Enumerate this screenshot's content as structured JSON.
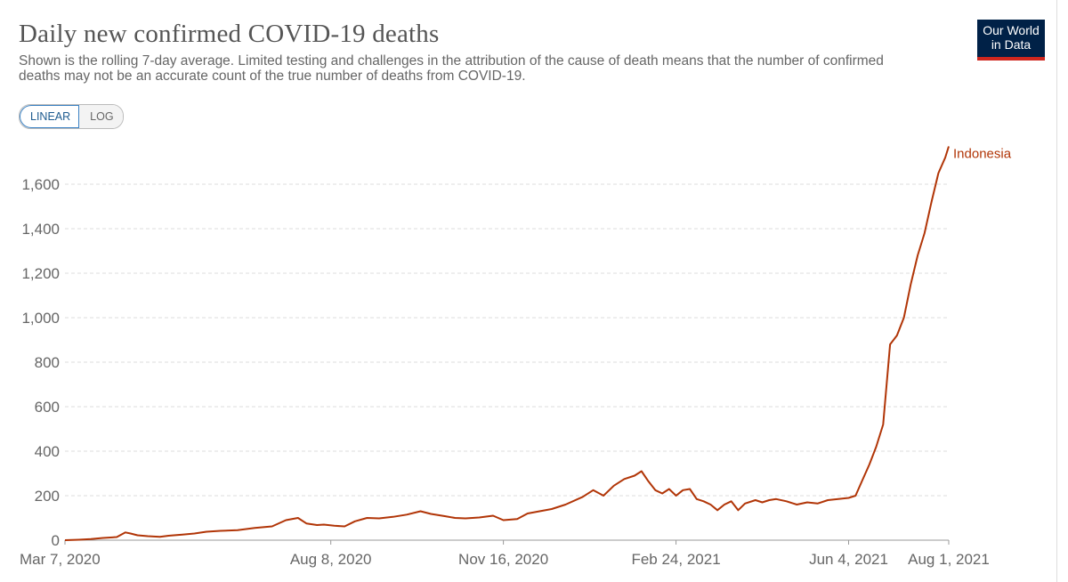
{
  "header": {
    "title": "Daily new confirmed COVID-19 deaths",
    "subtitle": "Shown is the rolling 7-day average. Limited testing and challenges in the attribution of the cause of death means that the number of confirmed deaths may not be an accurate count of the true number of deaths from COVID-19.",
    "logo_line1": "Our World",
    "logo_line2": "in Data"
  },
  "controls": {
    "linear_label": "LINEAR",
    "log_label": "LOG",
    "selected": "LINEAR"
  },
  "colors": {
    "series": "#b13507",
    "logo_bg": "#002147",
    "logo_accent": "#ce261e",
    "grid": "#dddddd",
    "text": "#666666"
  },
  "chart_data": {
    "type": "line",
    "title": "Daily new confirmed COVID-19 deaths",
    "xlabel": "",
    "ylabel": "",
    "ylim": [
      0,
      1800
    ],
    "xlim": [
      0,
      512
    ],
    "x_unit": "days since Mar 7, 2020",
    "y_ticks": [
      0,
      200,
      400,
      600,
      800,
      1000,
      1200,
      1400,
      1600
    ],
    "y_tick_labels": [
      "0",
      "200",
      "400",
      "600",
      "800",
      "1,000",
      "1,200",
      "1,400",
      "1,600"
    ],
    "x_ticks": [
      {
        "day": 0,
        "label": "Mar 7, 2020"
      },
      {
        "day": 154,
        "label": "Aug 8, 2020"
      },
      {
        "day": 254,
        "label": "Nov 16, 2020"
      },
      {
        "day": 354,
        "label": "Feb 24, 2021"
      },
      {
        "day": 454,
        "label": "Jun 4, 2021"
      },
      {
        "day": 512,
        "label": "Aug 1, 2021"
      }
    ],
    "grid": true,
    "series": [
      {
        "name": "Indonesia",
        "x": [
          0,
          8,
          15,
          22,
          30,
          35,
          38,
          42,
          48,
          55,
          60,
          68,
          75,
          82,
          90,
          100,
          110,
          120,
          128,
          135,
          140,
          146,
          150,
          156,
          162,
          168,
          175,
          182,
          190,
          198,
          206,
          212,
          220,
          226,
          232,
          240,
          248,
          254,
          262,
          268,
          275,
          282,
          290,
          300,
          306,
          312,
          318,
          324,
          330,
          334,
          338,
          342,
          346,
          350,
          354,
          358,
          362,
          366,
          370,
          374,
          378,
          382,
          386,
          390,
          394,
          400,
          404,
          408,
          412,
          418,
          424,
          430,
          436,
          442,
          448,
          454,
          458,
          462,
          466,
          470,
          474,
          478,
          482,
          486,
          490,
          494,
          498,
          502,
          506,
          510,
          512
        ],
        "values": [
          0,
          2,
          5,
          10,
          14,
          35,
          30,
          22,
          18,
          15,
          20,
          25,
          30,
          38,
          42,
          45,
          55,
          62,
          90,
          100,
          75,
          68,
          70,
          65,
          62,
          85,
          100,
          98,
          105,
          115,
          130,
          118,
          108,
          100,
          98,
          102,
          110,
          90,
          95,
          120,
          130,
          140,
          160,
          195,
          225,
          200,
          245,
          275,
          290,
          310,
          265,
          225,
          210,
          230,
          200,
          225,
          230,
          185,
          175,
          160,
          135,
          160,
          175,
          135,
          165,
          180,
          170,
          180,
          185,
          175,
          160,
          170,
          165,
          180,
          185,
          190,
          200,
          270,
          340,
          420,
          520,
          880,
          920,
          1000,
          1150,
          1280,
          1380,
          1520,
          1650,
          1720,
          1770
        ]
      }
    ]
  }
}
